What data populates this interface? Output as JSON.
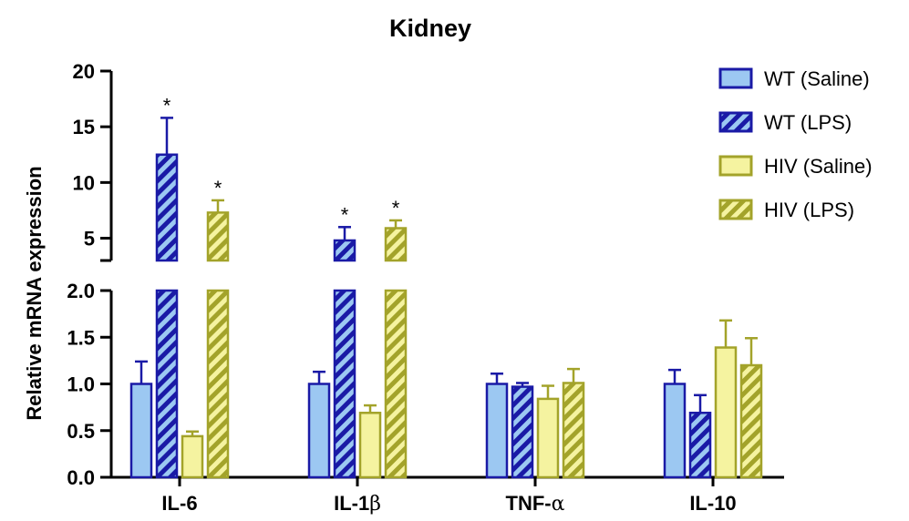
{
  "chart_data": {
    "type": "bar",
    "title": "Kidney",
    "ylabel": "Relative mRNA expression",
    "xlabel": "",
    "categories": [
      {
        "main": "IL-",
        "greek": "6",
        "bold_suffix": ""
      },
      {
        "main": "IL-1",
        "greek": "β",
        "bold_suffix": ""
      },
      {
        "main": "TNF-",
        "greek": "α",
        "bold_suffix": ""
      },
      {
        "main": "IL-10",
        "greek": "",
        "bold_suffix": ""
      }
    ],
    "y_axis": {
      "broken": true,
      "lower_range": [
        0,
        2.0
      ],
      "lower_ticks": [
        "0.0",
        "0.5",
        "1.0",
        "1.5",
        "2.0"
      ],
      "lower_tick_values": [
        0,
        0.5,
        1.0,
        1.5,
        2.0
      ],
      "upper_range": [
        3,
        20
      ],
      "upper_ticks": [
        "5",
        "10",
        "15",
        "20"
      ],
      "upper_tick_values": [
        5,
        10,
        15,
        20
      ]
    },
    "series": [
      {
        "name": "WT (Saline)",
        "pattern": "solid",
        "fill": "#9cc8f2",
        "stroke": "#1a1aa6",
        "values": [
          1.0,
          1.0,
          1.0,
          1.0
        ],
        "errors": [
          0.24,
          0.13,
          0.11,
          0.15
        ],
        "significant": [
          false,
          false,
          false,
          false
        ]
      },
      {
        "name": "WT (LPS)",
        "pattern": "hatched",
        "fill": "#9cc8f2",
        "stroke": "#1a1aa6",
        "values": [
          12.5,
          4.8,
          0.97,
          0.69
        ],
        "errors": [
          3.3,
          1.2,
          0.04,
          0.19
        ],
        "significant": [
          true,
          true,
          false,
          false
        ]
      },
      {
        "name": "HIV (Saline)",
        "pattern": "solid",
        "fill": "#f5f3a0",
        "stroke": "#a3a32a",
        "values": [
          0.44,
          0.69,
          0.84,
          1.39
        ],
        "errors": [
          0.05,
          0.08,
          0.14,
          0.29
        ],
        "significant": [
          false,
          false,
          false,
          false
        ]
      },
      {
        "name": "HIV (LPS)",
        "pattern": "hatched",
        "fill": "#f5f3a0",
        "stroke": "#a3a32a",
        "values": [
          7.3,
          5.9,
          1.01,
          1.2
        ],
        "errors": [
          1.1,
          0.7,
          0.15,
          0.29
        ],
        "significant": [
          true,
          true,
          false,
          false
        ]
      }
    ],
    "significance_marker": "*",
    "legend_position": "right"
  }
}
